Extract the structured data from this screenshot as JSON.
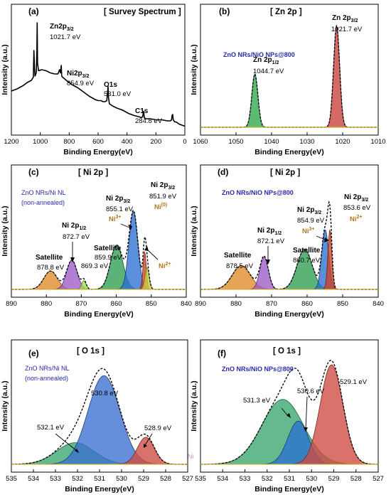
{
  "chart_data": [
    {
      "panel": "(a)",
      "type": "line",
      "title": "[ Survey Spectrum ]",
      "xlabel": "Binding Energy(eV)",
      "ylabel": "Intensity (a.u.)",
      "xlim": [
        1200,
        0
      ],
      "x_reversed": true,
      "xticks": [
        1200,
        1000,
        800,
        600,
        400,
        200,
        0
      ],
      "series": [
        {
          "color": "#000000",
          "x": [
            1200,
            1160,
            1120,
            1090,
            1062,
            1048,
            1044,
            1040,
            1036,
            1028,
            1024,
            1021.7,
            1019,
            1012,
            990,
            960,
            930,
            900,
            878,
            870,
            866,
            861,
            857,
            854.9,
            852,
            846,
            820,
            780,
            740,
            700,
            660,
            620,
            600,
            580,
            566,
            552,
            540,
            535,
            531,
            528,
            522,
            500,
            470,
            430,
            390,
            350,
            320,
            300,
            292,
            288,
            284.8,
            281,
            270,
            240,
            200,
            160,
            120,
            100,
            92,
            88,
            84,
            80,
            70,
            60,
            40,
            20,
            0
          ],
          "y": [
            0.36,
            0.38,
            0.41,
            0.44,
            0.46,
            0.49,
            0.74,
            0.58,
            0.5,
            0.53,
            0.72,
            1.0,
            0.62,
            0.55,
            0.56,
            0.55,
            0.53,
            0.52,
            0.52,
            0.55,
            0.56,
            0.53,
            0.57,
            0.6,
            0.5,
            0.49,
            0.46,
            0.42,
            0.39,
            0.35,
            0.31,
            0.28,
            0.27,
            0.27,
            0.26,
            0.26,
            0.27,
            0.34,
            0.4,
            0.3,
            0.24,
            0.22,
            0.2,
            0.18,
            0.15,
            0.13,
            0.12,
            0.11,
            0.12,
            0.15,
            0.17,
            0.11,
            0.1,
            0.1,
            0.09,
            0.09,
            0.08,
            0.08,
            0.09,
            0.13,
            0.14,
            0.09,
            0.07,
            0.07,
            0.05,
            0.04,
            0.03
          ]
        }
      ],
      "annotations": [
        {
          "label": "Zn2p3/2",
          "value": "1021.7 eV"
        },
        {
          "label": "Ni2p3/2",
          "value": "854.9 eV"
        },
        {
          "label": "O1s",
          "value": "531.0 eV"
        },
        {
          "label": "C1s",
          "value": "284.8 eV"
        }
      ]
    },
    {
      "panel": "(b)",
      "type": "area",
      "title": "[ Zn 2p ]",
      "sample": "ZnO NRs/NiO NPs@800",
      "xlabel": "Binding Energy(eV)",
      "ylabel": "Intensity (a.u.)",
      "xlim": [
        1060,
        1010
      ],
      "x_reversed": true,
      "xticks": [
        1060,
        1050,
        1040,
        1030,
        1020,
        1010
      ],
      "baseline": 0.02,
      "peaks": [
        {
          "name": "Zn 2p1/2",
          "center": 1044.7,
          "height": 0.5,
          "fwhm": 2.0,
          "fill": "#2ea84a"
        },
        {
          "name": "Zn 2p3/2",
          "center": 1021.7,
          "height": 0.95,
          "fwhm": 2.0,
          "fill": "#c8403a"
        }
      ],
      "annotations": [
        {
          "label": "Zn 2p1/2",
          "value": "1044.7 eV"
        },
        {
          "label": "Zn 2p3/2",
          "value": "1021.7 eV"
        }
      ]
    },
    {
      "panel": "(c)",
      "type": "area",
      "title": "[ Ni 2p ]",
      "sample": "ZnO NRs/Ni NL",
      "sample_note": "(non-annealed)",
      "xlabel": "Binding Energy(eV)",
      "ylabel": "Intensity (a.u.)",
      "xlim": [
        890,
        840
      ],
      "x_reversed": true,
      "xticks": [
        890,
        880,
        870,
        860,
        850,
        840
      ],
      "baseline": 0.02,
      "peaks": [
        {
          "name": "Satellite",
          "center": 878.8,
          "height": 0.17,
          "fwhm": 4.5,
          "fill": "#e08b2a"
        },
        {
          "name": "Ni 2p1/2",
          "center": 872.7,
          "height": 0.27,
          "fwhm": 3.5,
          "fill": "#9c5bc6"
        },
        {
          "name": "869.3",
          "center": 869.3,
          "height": 0.08,
          "fwhm": 1.5,
          "fill": "#9be04a"
        },
        {
          "name": "Satellite",
          "center": 859.9,
          "height": 0.41,
          "fwhm": 4.2,
          "fill": "#2e9e52"
        },
        {
          "name": "Ni 2p3/2 Ni3+",
          "center": 855.1,
          "height": 0.72,
          "fwhm": 3.0,
          "fill": "#2a6fd1"
        },
        {
          "name": "Ni 2p3/2 Ni0",
          "center": 851.9,
          "height": 0.35,
          "fwhm": 1.1,
          "fill": "#d04020"
        },
        {
          "name": "Ni2+",
          "center": 851.2,
          "height": 0.2,
          "fwhm": 1.4,
          "fill": "#c8d040"
        }
      ],
      "annotations": [
        {
          "label": "Satellite",
          "value": "878.8 eV"
        },
        {
          "label": "Ni 2p1/2",
          "value": "872.7 eV"
        },
        {
          "value": "869.3 eV"
        },
        {
          "label": "Satellite",
          "value": "859.9 eV"
        },
        {
          "label": "Ni 2p3/2",
          "value": "855.1 eV",
          "state": "Ni3+"
        },
        {
          "label": "Ni 2p3/2",
          "value": "851.9 eV",
          "state": "Ni(0)"
        },
        {
          "state": "Ni2+"
        }
      ]
    },
    {
      "panel": "(d)",
      "type": "area",
      "title": "[ Ni 2p ]",
      "sample": "ZnO NRs/NiO NPs@800",
      "xlabel": "Binding Energy(eV)",
      "ylabel": "Intensity (a.u.)",
      "xlim": [
        890,
        840
      ],
      "x_reversed": true,
      "xticks": [
        890,
        880,
        870,
        860,
        850,
        840
      ],
      "baseline": 0.02,
      "peaks": [
        {
          "name": "Satellite",
          "center": 878.5,
          "height": 0.22,
          "fwhm": 6.0,
          "fill": "#e08b2a"
        },
        {
          "name": "Ni 2p1/2",
          "center": 872.1,
          "height": 0.3,
          "fwhm": 2.8,
          "fill": "#9c5bc6"
        },
        {
          "name": "Satellite",
          "center": 860.7,
          "height": 0.37,
          "fwhm": 5.0,
          "fill": "#2e9e52"
        },
        {
          "name": "Ni 2p3/2 Ni3+",
          "center": 854.9,
          "height": 0.55,
          "fwhm": 2.3,
          "fill": "#2a6fd1"
        },
        {
          "name": "Ni 2p3/2 Ni2+",
          "center": 853.6,
          "height": 0.55,
          "fwhm": 1.3,
          "fill": "#d04020"
        }
      ],
      "annotations": [
        {
          "label": "Satellite",
          "value": "878.5 eV"
        },
        {
          "label": "Ni 2p1/2",
          "value": "872.1 eV"
        },
        {
          "label": "Satellite",
          "value": "860.7 eV"
        },
        {
          "label": "Ni 2p3/2",
          "value": "854.9 eV",
          "state": "Ni3+"
        },
        {
          "label": "Ni 2p3/2",
          "value": "853.6 eV",
          "state": "Ni2+"
        }
      ]
    },
    {
      "panel": "(e)",
      "type": "area",
      "title": "[ O 1s ]",
      "sample": "ZnO NRs/Ni NL",
      "sample_note": "(non-annealed)",
      "xlabel": "Binding Energy(eV)",
      "ylabel": "Intensity (a.u.)",
      "xlim": [
        535,
        527
      ],
      "x_reversed": true,
      "xticks": [
        535,
        534,
        533,
        532,
        531,
        530,
        529,
        528,
        527
      ],
      "baseline": 0.02,
      "peaks": [
        {
          "name": "532.1",
          "center": 532.1,
          "height": 0.2,
          "fwhm": 2.0,
          "fill": "#38a56e"
        },
        {
          "name": "530.8",
          "center": 530.8,
          "height": 0.82,
          "fwhm": 1.7,
          "fill": "#3a6fd0"
        },
        {
          "name": "528.9",
          "center": 528.9,
          "height": 0.25,
          "fwhm": 0.9,
          "fill": "#d04a42"
        }
      ],
      "annotations": [
        {
          "value": "530.8 eV"
        },
        {
          "value": "532.1 eV"
        },
        {
          "value": "528.9 eV"
        }
      ],
      "faint_text": [
        "Ni"
      ]
    },
    {
      "panel": "(f)",
      "type": "area",
      "title": "[ O 1s ]",
      "sample": "ZnO NRs/NiO NPs@800",
      "xlabel": "Binding Energy(eV)",
      "ylabel": "Intensity (a.u.)",
      "xlim": [
        535,
        527
      ],
      "x_reversed": true,
      "xticks": [
        535,
        534,
        533,
        532,
        531,
        530,
        529,
        528,
        527
      ],
      "baseline": 0.02,
      "peaks": [
        {
          "name": "531.3",
          "center": 531.3,
          "height": 0.6,
          "fwhm": 2.2,
          "fill": "#38a56e"
        },
        {
          "name": "530.6",
          "center": 530.6,
          "height": 0.4,
          "fwhm": 1.1,
          "fill": "#2a6fd1"
        },
        {
          "name": "529.1",
          "center": 529.1,
          "height": 0.92,
          "fwhm": 1.2,
          "fill": "#d04a42"
        }
      ],
      "annotations": [
        {
          "value": "531.3 eV"
        },
        {
          "value": "530.6 eV"
        },
        {
          "value": "529.1 eV"
        }
      ]
    }
  ]
}
